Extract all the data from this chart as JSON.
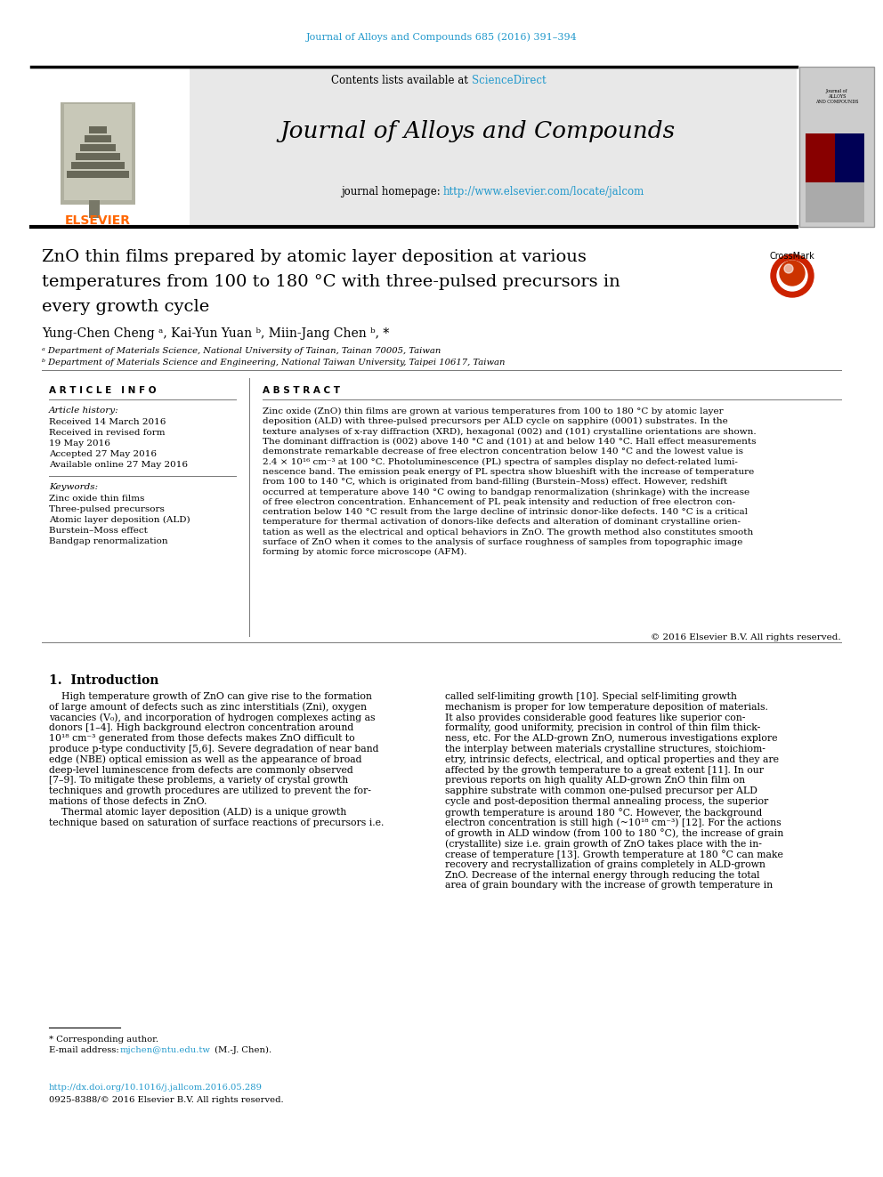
{
  "page_bg": "#ffffff",
  "journal_ref": "Journal of Alloys and Compounds 685 (2016) 391–394",
  "journal_ref_color": "#2299cc",
  "journal_name": "Journal of Alloys and Compounds",
  "journal_homepage_label": "journal homepage:  ",
  "journal_homepage_url": "http://www.elsevier.com/locate/jalcom",
  "journal_homepage_color": "#2299cc",
  "contents_text": "Contents lists available at ",
  "sciencedirect_text": "ScienceDirect",
  "sciencedirect_color": "#2299cc",
  "elsevier_color": "#ff6600",
  "header_bg": "#e8e8e8",
  "article_info_header": "A R T I C L E   I N F O",
  "article_history_label": "Article history:",
  "article_history_lines": [
    "Received 14 March 2016",
    "Received in revised form",
    "19 May 2016",
    "Accepted 27 May 2016",
    "Available online 27 May 2016"
  ],
  "keywords_label": "Keywords:",
  "keywords_lines": [
    "Zinc oxide thin films",
    "Three-pulsed precursors",
    "Atomic layer deposition (ALD)",
    "Burstein–Moss effect",
    "Bandgap renormalization"
  ],
  "abstract_header": "A B S T R A C T",
  "abstract_lines": [
    "Zinc oxide (ZnO) thin films are grown at various temperatures from 100 to 180 °C by atomic layer",
    "deposition (ALD) with three-pulsed precursors per ALD cycle on sapphire (0001) substrates. In the",
    "texture analyses of x-ray diffraction (XRD), hexagonal (002) and (101) crystalline orientations are shown.",
    "The dominant diffraction is (002) above 140 °C and (101) at and below 140 °C. Hall effect measurements",
    "demonstrate remarkable decrease of free electron concentration below 140 °C and the lowest value is",
    "2.4 × 10¹⁶ cm⁻³ at 100 °C. Photoluminescence (PL) spectra of samples display no defect-related lumi-",
    "nescence band. The emission peak energy of PL spectra show blueshift with the increase of temperature",
    "from 100 to 140 °C, which is originated from band-filling (Burstein–Moss) effect. However, redshift",
    "occurred at temperature above 140 °C owing to bandgap renormalization (shrinkage) with the increase",
    "of free electron concentration. Enhancement of PL peak intensity and reduction of free electron con-",
    "centration below 140 °C result from the large decline of intrinsic donor-like defects. 140 °C is a critical",
    "temperature for thermal activation of donors-like defects and alteration of dominant crystalline orien-",
    "tation as well as the electrical and optical behaviors in ZnO. The growth method also constitutes smooth",
    "surface of ZnO when it comes to the analysis of surface roughness of samples from topographic image",
    "forming by atomic force microscope (AFM)."
  ],
  "copyright": "© 2016 Elsevier B.V. All rights reserved.",
  "section1_title": "1.  Introduction",
  "intro_col1_lines": [
    "    High temperature growth of ZnO can give rise to the formation",
    "of large amount of defects such as zinc interstitials (Zni), oxygen",
    "vacancies (V₀), and incorporation of hydrogen complexes acting as",
    "donors [1–4]. High background electron concentration around",
    "10¹⁸ cm⁻³ generated from those defects makes ZnO difficult to",
    "produce p-type conductivity [5,6]. Severe degradation of near band",
    "edge (NBE) optical emission as well as the appearance of broad",
    "deep-level luminescence from defects are commonly observed",
    "[7–9]. To mitigate these problems, a variety of crystal growth",
    "techniques and growth procedures are utilized to prevent the for-",
    "mations of those defects in ZnO.",
    "    Thermal atomic layer deposition (ALD) is a unique growth",
    "technique based on saturation of surface reactions of precursors i.e."
  ],
  "intro_col2_lines": [
    "called self-limiting growth [10]. Special self-limiting growth",
    "mechanism is proper for low temperature deposition of materials.",
    "It also provides considerable good features like superior con-",
    "formality, good uniformity, precision in control of thin film thick-",
    "ness, etc. For the ALD-grown ZnO, numerous investigations explore",
    "the interplay between materials crystalline structures, stoichiom-",
    "etry, intrinsic defects, electrical, and optical properties and they are",
    "affected by the growth temperature to a great extent [11]. In our",
    "previous reports on high quality ALD-grown ZnO thin film on",
    "sapphire substrate with common one-pulsed precursor per ALD",
    "cycle and post-deposition thermal annealing process, the superior",
    "growth temperature is around 180 °C. However, the background",
    "electron concentration is still high (~10¹⁸ cm⁻³) [12]. For the actions",
    "of growth in ALD window (from 100 to 180 °C), the increase of grain",
    "(crystallite) size i.e. grain growth of ZnO takes place with the in-",
    "crease of temperature [13]. Growth temperature at 180 °C can make",
    "recovery and recrystallization of grains completely in ALD-grown",
    "ZnO. Decrease of the internal energy through reducing the total",
    "area of grain boundary with the increase of growth temperature in"
  ],
  "footnote_star": "* Corresponding author.",
  "footnote_email_label": "E-mail address: ",
  "footnote_email": "mjchen@ntu.edu.tw",
  "footnote_email_color": "#2299cc",
  "footnote_email_suffix": " (M.-J. Chen).",
  "doi_url": "http://dx.doi.org/10.1016/j.jallcom.2016.05.289",
  "doi_color": "#2299cc",
  "issn": "0925-8388/© 2016 Elsevier B.V. All rights reserved.",
  "title_line1": "ZnO thin films prepared by atomic layer deposition at various",
  "title_line2": "temperatures from 100 to 180 °C with three-pulsed precursors in",
  "title_line3": "every growth cycle",
  "authors_line": "Yung-Chen Cheng ᵃ, Kai-Yun Yuan ᵇ, Miin-Jang Chen ᵇ, *",
  "affil_a": "ᵃ Department of Materials Science, National University of Tainan, Tainan 70005, Taiwan",
  "affil_b": "ᵇ Department of Materials Science and Engineering, National Taiwan University, Taipei 10617, Taiwan"
}
